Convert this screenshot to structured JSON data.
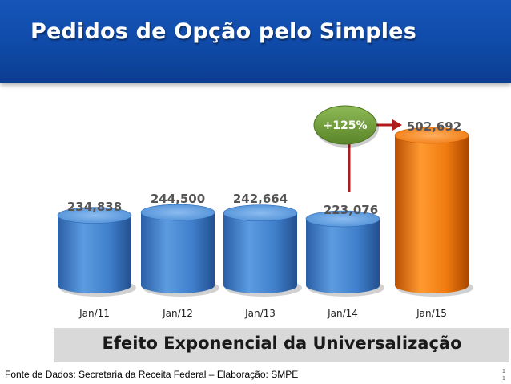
{
  "header": {
    "title": "Pedidos de Opção pelo Simples"
  },
  "chart_data": {
    "type": "bar",
    "categories": [
      "Jan/11",
      "Jan/12",
      "Jan/13",
      "Jan/14",
      "Jan/15"
    ],
    "values": [
      234838,
      244500,
      242664,
      223076,
      502692
    ],
    "value_labels": [
      "234,838",
      "244,500",
      "242,664",
      "223,076",
      "502,692"
    ],
    "highlight_index": 4,
    "annotation": {
      "text": "+125%",
      "from_index": 3,
      "to_index": 4
    },
    "colors": {
      "bar": "#4f8fd6",
      "bar_dark": "#2f6cb6",
      "highlight": "#f07a10",
      "highlight_dark": "#c65a05",
      "arrow": "#b01a1a",
      "badge": "#6f9a3a"
    },
    "title": "",
    "xlabel": "",
    "ylabel": "",
    "grid": false,
    "legend": "none"
  },
  "banner": {
    "text": "Efeito Exponencial da Universalização"
  },
  "footer": {
    "source": "Fonte de Dados: Secretaria da Receita Federal – Elaboração: SMPE",
    "page_top": "1",
    "page_bottom": "1"
  }
}
